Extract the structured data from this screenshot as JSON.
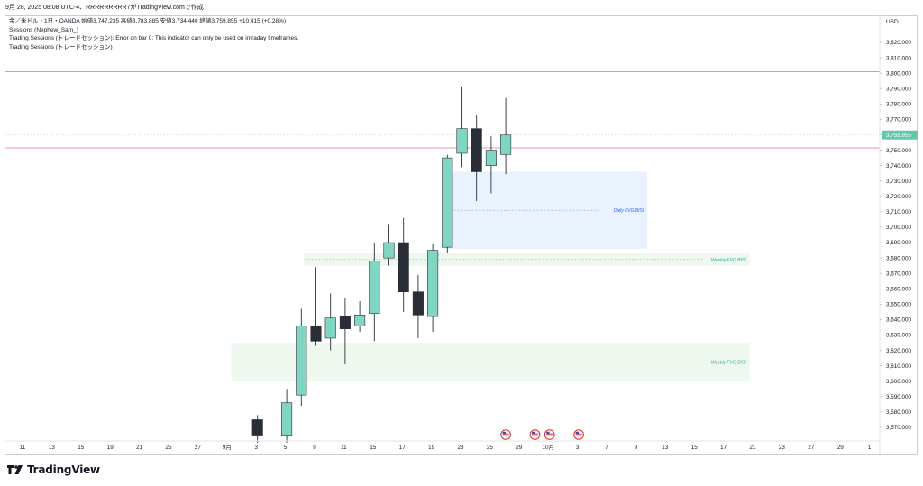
{
  "header": {
    "text": "9月 28, 2025 08:08 UTC-4、RRRRRRRRR7がTradingView.comで作成"
  },
  "legend": {
    "symbol_line": "金／米ドル・1日・OANDA  始値3,747.235  高値3,783.885  安値3,734.440  終値3,759.855  +10.415 (+0.28%)",
    "indicator_1": "Sessions (Nephew_Sam_)",
    "indicator_2": "Trading Sessions (トレードセッション): Error on bar 0: This indicator can only be used on intraday timeframes.",
    "indicator_3": "Trading Sessions (トレードセッション)"
  },
  "price_axis": {
    "currency": "USD",
    "ticks": [
      "3,820.000",
      "3,810.000",
      "3,800.000",
      "3,790.000",
      "3,780.000",
      "3,770.000",
      "3,760.000",
      "3,750.000",
      "3,740.000",
      "3,730.000",
      "3,720.000",
      "3,710.000",
      "3,700.000",
      "3,690.000",
      "3,680.000",
      "3,670.000",
      "3,660.000",
      "3,650.000",
      "3,640.000",
      "3,630.000",
      "3,620.000",
      "3,610.000",
      "3,600.000",
      "3,590.000",
      "3,580.000",
      "3,570.000"
    ],
    "last_price_label": "3,759.855"
  },
  "brand": {
    "name": "TradingView"
  },
  "chart_data": {
    "type": "candlestick",
    "x_ticks": [
      {
        "label": "11",
        "slot": -20
      },
      {
        "label": "13",
        "slot": -18
      },
      {
        "label": "15",
        "slot": -16
      },
      {
        "label": "19",
        "slot": -14
      },
      {
        "label": "21",
        "slot": -12
      },
      {
        "label": "25",
        "slot": -10
      },
      {
        "label": "27",
        "slot": -8
      },
      {
        "label": "9月",
        "slot": -6
      },
      {
        "label": "3",
        "slot": -4
      },
      {
        "label": "5",
        "slot": -2
      },
      {
        "label": "9",
        "slot": 0
      },
      {
        "label": "11",
        "slot": 2
      },
      {
        "label": "15",
        "slot": 4
      },
      {
        "label": "17",
        "slot": 6
      },
      {
        "label": "19",
        "slot": 8
      },
      {
        "label": "23",
        "slot": 10
      },
      {
        "label": "25",
        "slot": 12
      },
      {
        "label": "29",
        "slot": 14
      },
      {
        "label": "10月",
        "slot": 16
      },
      {
        "label": "3",
        "slot": 18
      },
      {
        "label": "7",
        "slot": 20
      },
      {
        "label": "9",
        "slot": 22
      },
      {
        "label": "13",
        "slot": 24
      },
      {
        "label": "15",
        "slot": 26
      },
      {
        "label": "17",
        "slot": 28
      },
      {
        "label": "21",
        "slot": 30
      },
      {
        "label": "23",
        "slot": 32
      },
      {
        "label": "27",
        "slot": 34
      },
      {
        "label": "29",
        "slot": 36
      },
      {
        "label": "1",
        "slot": 38
      }
    ],
    "candles": [
      {
        "slot": -4,
        "open": 3575,
        "high": 3578,
        "low": 3560,
        "close": 3565
      },
      {
        "slot": -2,
        "open": 3565,
        "high": 3595,
        "low": 3560,
        "close": 3586
      },
      {
        "slot": -1,
        "open": 3591,
        "high": 3647,
        "low": 3584,
        "close": 3636
      },
      {
        "slot": 0,
        "open": 3636,
        "high": 3674,
        "low": 3623,
        "close": 3626
      },
      {
        "slot": 1,
        "open": 3628,
        "high": 3657,
        "low": 3620,
        "close": 3641
      },
      {
        "slot": 2,
        "open": 3642,
        "high": 3654,
        "low": 3611,
        "close": 3634
      },
      {
        "slot": 3,
        "open": 3636,
        "high": 3652,
        "low": 3632,
        "close": 3643
      },
      {
        "slot": 4,
        "open": 3644,
        "high": 3690,
        "low": 3626,
        "close": 3678
      },
      {
        "slot": 5,
        "open": 3680,
        "high": 3702,
        "low": 3675,
        "close": 3690
      },
      {
        "slot": 6,
        "open": 3690,
        "high": 3706,
        "low": 3645,
        "close": 3658
      },
      {
        "slot": 7,
        "open": 3658,
        "high": 3669,
        "low": 3628,
        "close": 3643
      },
      {
        "slot": 8,
        "open": 3642,
        "high": 3689,
        "low": 3632,
        "close": 3685
      },
      {
        "slot": 9,
        "open": 3687,
        "high": 3747,
        "low": 3683,
        "close": 3745
      },
      {
        "slot": 10,
        "open": 3748,
        "high": 3791,
        "low": 3739,
        "close": 3764
      },
      {
        "slot": 11,
        "open": 3764,
        "high": 3773,
        "low": 3717,
        "close": 3736
      },
      {
        "slot": 12,
        "open": 3740,
        "high": 3759,
        "low": 3722,
        "close": 3750
      },
      {
        "slot": 13,
        "open": 3747.235,
        "high": 3783.885,
        "low": 3734.44,
        "close": 3759.855
      }
    ],
    "horizontal_lines": [
      {
        "price": 3801,
        "color": "#ce93d8"
      },
      {
        "price": 3759.855,
        "color": "#d1d4dc",
        "dashed": true
      },
      {
        "price": 3751.5,
        "color": "#f48fb1"
      },
      {
        "price": 3654,
        "color": "#4dd0e1"
      }
    ],
    "zones": [
      {
        "label": "Daily FVG BISI",
        "slot_from": 8.7,
        "slot_to": 22.7,
        "low": 3686,
        "high": 3736,
        "fill": "#e9f2fe",
        "mid_color": "#90a4d8",
        "label_color": "#2962ff"
      },
      {
        "label": "Weekly FVG BISI",
        "slot_from": -0.8,
        "slot_to": 29.7,
        "low": 3675,
        "high": 3683,
        "fill": "#eff8ef",
        "mid_color": "#81c995",
        "label_color": "#22ab94"
      },
      {
        "label": "Weekly FVG BISI",
        "slot_from": -5.8,
        "slot_to": 29.7,
        "low": 3600,
        "high": 3625,
        "fill": "#eff8ef",
        "mid_color": "#a5d6a7",
        "label_color": "#22ab94"
      }
    ],
    "event_slots": [
      13,
      15,
      16,
      18
    ],
    "colors": {
      "up": "#7fd6c2",
      "down": "#2a2e39",
      "wick": "#2a2e39",
      "last_price_bg": "#63c7ac"
    }
  }
}
